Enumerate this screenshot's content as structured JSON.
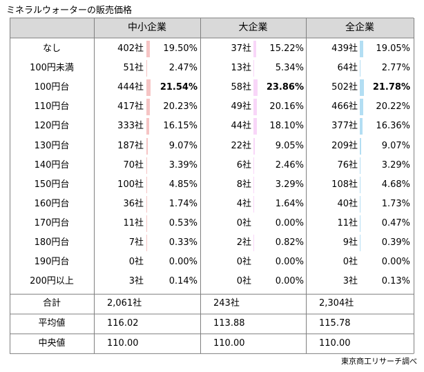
{
  "title": "ミネラルウォーターの販売価格",
  "source": "東京商工リサーチ調べ",
  "colors": {
    "small": "#f5c4c4",
    "large": "#f8d6f8",
    "all": "#b3def3",
    "header_bg": "#d9d9d9",
    "line": "#7f7f7f"
  },
  "headers": [
    "中小企業",
    "大企業",
    "全企業"
  ],
  "chart_data": {
    "type": "table",
    "title": "ミネラルウォーターの販売価格",
    "columns": [
      "中小企業",
      "大企業",
      "全企業"
    ],
    "categories": [
      "なし",
      "100円未満",
      "100円台",
      "110円台",
      "120円台",
      "130円台",
      "140円台",
      "150円台",
      "160円台",
      "170円台",
      "180円台",
      "190円台",
      "200円以上"
    ],
    "series": [
      {
        "name": "中小企業",
        "counts": [
          "402社",
          "51社",
          "444社",
          "417社",
          "333社",
          "187社",
          "70社",
          "100社",
          "36社",
          "11社",
          "7社",
          "0社",
          "3社"
        ],
        "percents": [
          "19.50%",
          "2.47%",
          "21.54%",
          "20.23%",
          "16.15%",
          "9.07%",
          "3.39%",
          "4.85%",
          "1.74%",
          "0.53%",
          "0.33%",
          "0.00%",
          "0.14%"
        ],
        "values": [
          19.5,
          2.47,
          21.54,
          20.23,
          16.15,
          9.07,
          3.39,
          4.85,
          1.74,
          0.53,
          0.33,
          0.0,
          0.14
        ],
        "highlight_index": 2
      },
      {
        "name": "大企業",
        "counts": [
          "37社",
          "13社",
          "58社",
          "49社",
          "44社",
          "22社",
          "6社",
          "8社",
          "4社",
          "0社",
          "2社",
          "0社",
          "0社"
        ],
        "percents": [
          "15.22%",
          "5.34%",
          "23.86%",
          "20.16%",
          "18.10%",
          "9.05%",
          "2.46%",
          "3.29%",
          "1.64%",
          "0.00%",
          "0.82%",
          "0.00%",
          "0.00%"
        ],
        "values": [
          15.22,
          5.34,
          23.86,
          20.16,
          18.1,
          9.05,
          2.46,
          3.29,
          1.64,
          0.0,
          0.82,
          0.0,
          0.0
        ],
        "highlight_index": 2
      },
      {
        "name": "全企業",
        "counts": [
          "439社",
          "64社",
          "502社",
          "466社",
          "377社",
          "209社",
          "76社",
          "108社",
          "40社",
          "11社",
          "9社",
          "0社",
          "3社"
        ],
        "percents": [
          "19.05%",
          "2.77%",
          "21.78%",
          "20.22%",
          "16.36%",
          "9.07%",
          "3.29%",
          "4.68%",
          "1.73%",
          "0.47%",
          "0.39%",
          "0.00%",
          "0.13%"
        ],
        "values": [
          19.05,
          2.77,
          21.78,
          20.22,
          16.36,
          9.07,
          3.29,
          4.68,
          1.73,
          0.47,
          0.39,
          0.0,
          0.13
        ],
        "highlight_index": 2
      }
    ],
    "summary": [
      {
        "label": "合計",
        "values": [
          "2,061社",
          "243社",
          "2,304社"
        ]
      },
      {
        "label": "平均値",
        "values": [
          "116.02",
          "113.88",
          "115.78"
        ]
      },
      {
        "label": "中央値",
        "values": [
          "110.00",
          "110.00",
          "110.00"
        ]
      }
    ]
  }
}
